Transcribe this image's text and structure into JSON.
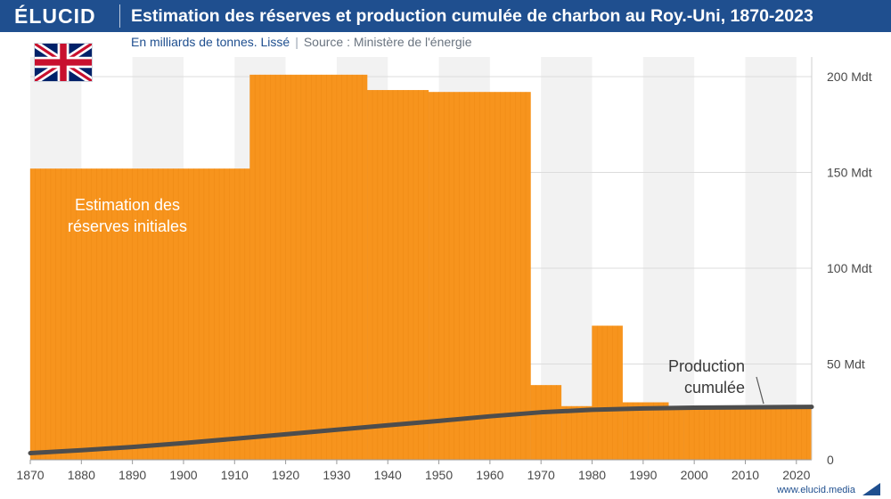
{
  "header": {
    "brand": "ÉLUCID",
    "title": "Estimation des réserves et production cumulée de charbon au Roy.-Uni, 1870-2023",
    "subtitle": "En milliards de tonnes. Lissé",
    "separator": "|",
    "source": "Source : Ministère de l'énergie"
  },
  "footer": {
    "url": "www.elucid.media"
  },
  "icons": {
    "flag": "uk-flag-icon",
    "footer": "elucid-arrow-icon"
  },
  "colors": {
    "header_bg": "#1f4f8f",
    "reserves": "#f7941d",
    "production": "#4d4d4d",
    "band": "#f2f2f2"
  },
  "chart_data": {
    "type": "bar",
    "x_range": [
      1870,
      2023
    ],
    "ylim": [
      0,
      200
    ],
    "y_ticks": [
      0,
      50,
      100,
      150,
      200
    ],
    "y_tick_labels": [
      "0",
      "50 Mdt",
      "100 Mdt",
      "150 Mdt",
      "200 Mdt"
    ],
    "x_ticks": [
      1870,
      1880,
      1890,
      1900,
      1910,
      1920,
      1930,
      1940,
      1950,
      1960,
      1970,
      1980,
      1990,
      2000,
      2010,
      2020
    ],
    "grid": true,
    "series": [
      {
        "name": "Estimation des réserves initiales",
        "type": "step-bar",
        "segments": [
          {
            "start": 1870,
            "end": 1913,
            "value": 152
          },
          {
            "start": 1913,
            "end": 1936,
            "value": 201
          },
          {
            "start": 1936,
            "end": 1948,
            "value": 193
          },
          {
            "start": 1948,
            "end": 1968,
            "value": 192
          },
          {
            "start": 1968,
            "end": 1974,
            "value": 39
          },
          {
            "start": 1974,
            "end": 1980,
            "value": 28
          },
          {
            "start": 1980,
            "end": 1986,
            "value": 70
          },
          {
            "start": 1986,
            "end": 1991,
            "value": 30
          },
          {
            "start": 1991,
            "end": 1995,
            "value": 30
          },
          {
            "start": 1995,
            "end": 1998,
            "value": 28
          },
          {
            "start": 1998,
            "end": 2023,
            "value": 27
          }
        ]
      },
      {
        "name": "Production cumulée",
        "type": "line",
        "x": [
          1870,
          1880,
          1890,
          1900,
          1910,
          1920,
          1930,
          1940,
          1950,
          1960,
          1970,
          1980,
          1990,
          2000,
          2010,
          2023
        ],
        "y": [
          3.5,
          5,
          6.7,
          8.7,
          11,
          13.3,
          15.7,
          18,
          20.3,
          22.7,
          24.8,
          26.1,
          26.8,
          27.2,
          27.4,
          27.6
        ]
      }
    ],
    "annotations": [
      {
        "text_lines": [
          "Estimation des",
          "réserves initiales"
        ],
        "target": "reserves"
      },
      {
        "text_lines": [
          "Production",
          "cumulée"
        ],
        "target": "production"
      }
    ]
  }
}
